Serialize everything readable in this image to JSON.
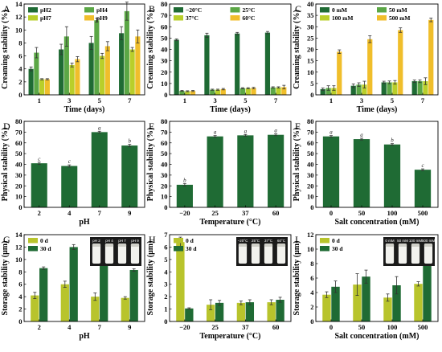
{
  "colors": {
    "dark_green": "#1f6b34",
    "mid_green": "#5ba746",
    "light_green": "#b9cf2a",
    "yellow": "#f0be2b",
    "olive": "#b8c42c",
    "error": "#333333"
  },
  "chart_data": [
    {
      "panel": "A",
      "type": "bar",
      "ylabel": "Creaming stability (%)",
      "xlabel": "Time (days)",
      "categories": [
        "1",
        "3",
        "5",
        "7"
      ],
      "ylim": [
        0,
        14
      ],
      "yticks": [
        0,
        2,
        4,
        6,
        8,
        10,
        12,
        14
      ],
      "legend_cols": 2,
      "series": [
        {
          "name": "pH2",
          "color": "#1f6b34",
          "values": [
            4.0,
            7.0,
            8.0,
            9.5
          ],
          "err": [
            0.3,
            0.8,
            1.0,
            1.0
          ]
        },
        {
          "name": "pH4",
          "color": "#5ba746",
          "values": [
            6.5,
            9.0,
            11.5,
            12.9
          ],
          "err": [
            0.8,
            1.5,
            0.3,
            1.4
          ]
        },
        {
          "name": "pH7",
          "color": "#b9cf2a",
          "values": [
            2.4,
            4.6,
            6.0,
            7.0
          ],
          "err": [
            0.1,
            0.3,
            0.4,
            0.3
          ]
        },
        {
          "name": "pH9",
          "color": "#f0be2b",
          "values": [
            2.4,
            5.5,
            7.5,
            9.0
          ],
          "err": [
            0.1,
            0.4,
            0.7,
            1.0
          ]
        }
      ]
    },
    {
      "panel": "B",
      "type": "bar",
      "ylabel": "Creaming stability (%)",
      "xlabel": "Time (days)",
      "categories": [
        "1",
        "3",
        "5",
        "7"
      ],
      "ylim": [
        0,
        80
      ],
      "yticks": [
        0,
        10,
        20,
        30,
        40,
        50,
        60,
        70,
        80
      ],
      "legend_cols": 2,
      "series": [
        {
          "name": "−20°C",
          "color": "#1f6b34",
          "values": [
            48.5,
            52.5,
            54.0,
            54.8
          ],
          "err": [
            0.8,
            1.8,
            1.0,
            1.0
          ]
        },
        {
          "name": "25°C",
          "color": "#5ba746",
          "values": [
            3.5,
            4.5,
            5.8,
            6.5
          ],
          "err": [
            0.4,
            0.5,
            0.5,
            0.6
          ]
        },
        {
          "name": "37°C",
          "color": "#b9cf2a",
          "values": [
            3.2,
            4.5,
            5.8,
            6.5
          ],
          "err": [
            0.4,
            0.5,
            0.5,
            0.6
          ]
        },
        {
          "name": "60°C",
          "color": "#f0be2b",
          "values": [
            3.4,
            5.0,
            6.0,
            6.8
          ],
          "err": [
            0.5,
            0.6,
            0.6,
            1.6
          ]
        }
      ]
    },
    {
      "panel": "C",
      "type": "bar",
      "ylabel": "Creaming stability (%)",
      "xlabel": "Time (days)",
      "categories": [
        "1",
        "3",
        "5",
        "7"
      ],
      "ylim": [
        0,
        40
      ],
      "yticks": [
        0,
        5,
        10,
        15,
        20,
        25,
        30,
        35,
        40
      ],
      "legend_cols": 2,
      "series": [
        {
          "name": "0 mM",
          "color": "#1f6b34",
          "values": [
            2.5,
            4.0,
            5.5,
            6.0
          ],
          "err": [
            0.5,
            0.8,
            0.5,
            0.5
          ]
        },
        {
          "name": "50 mM",
          "color": "#5ba746",
          "values": [
            3.0,
            4.5,
            5.5,
            6.0
          ],
          "err": [
            1.0,
            0.8,
            0.6,
            0.6
          ]
        },
        {
          "name": "100 mM",
          "color": "#b9cf2a",
          "values": [
            3.0,
            4.5,
            5.5,
            6.0
          ],
          "err": [
            1.0,
            1.5,
            0.8,
            1.5
          ]
        },
        {
          "name": "500 mM",
          "color": "#f0be2b",
          "values": [
            19.0,
            24.5,
            28.5,
            33.0
          ],
          "err": [
            0.8,
            1.5,
            1.0,
            0.8
          ]
        }
      ]
    },
    {
      "panel": "D",
      "type": "bar",
      "ylabel": "Physical stability (%)",
      "xlabel": "pH",
      "categories": [
        "2",
        "4",
        "7",
        "9"
      ],
      "ylim": [
        0,
        80
      ],
      "yticks": [
        0,
        10,
        20,
        30,
        40,
        50,
        60,
        70,
        80
      ],
      "series": [
        {
          "color": "#1f6b34",
          "values": [
            41,
            38.5,
            70,
            57.5
          ],
          "err": [
            1.0,
            1.0,
            0.8,
            1.2
          ],
          "labels": [
            "c",
            "c",
            "a",
            "b"
          ]
        }
      ]
    },
    {
      "panel": "E",
      "type": "bar",
      "ylabel": "Physical stability (%)",
      "xlabel": "Temperature (°C)",
      "categories": [
        "−20",
        "25",
        "37",
        "60"
      ],
      "ylim": [
        0,
        80
      ],
      "yticks": [
        0,
        10,
        20,
        30,
        40,
        50,
        60,
        70,
        80
      ],
      "series": [
        {
          "color": "#1f6b34",
          "values": [
            21,
            66,
            67,
            67.5
          ],
          "err": [
            1.2,
            0.8,
            0.8,
            0.8
          ],
          "labels": [
            "b",
            "a",
            "a",
            "a"
          ]
        }
      ]
    },
    {
      "panel": "F",
      "type": "bar",
      "ylabel": "Physical stability (%)",
      "xlabel": "Salt concentration (mM)",
      "categories": [
        "0",
        "50",
        "100",
        "500"
      ],
      "ylim": [
        0,
        80
      ],
      "yticks": [
        0,
        10,
        20,
        30,
        40,
        50,
        60,
        70,
        80
      ],
      "series": [
        {
          "color": "#1f6b34",
          "values": [
            66,
            63.5,
            58.5,
            35
          ],
          "err": [
            0.8,
            0.8,
            0.8,
            0.8
          ],
          "labels": [
            "a",
            "a",
            "b",
            "c"
          ]
        }
      ]
    },
    {
      "panel": "G",
      "type": "bar",
      "ylabel": "Storage stability (μm)",
      "xlabel": "pH",
      "categories": [
        "2",
        "4",
        "7",
        "9"
      ],
      "ylim": [
        0,
        14
      ],
      "yticks": [
        0,
        2,
        4,
        6,
        8,
        10,
        12,
        14
      ],
      "legend_cols": 1,
      "series": [
        {
          "name": "0 d",
          "color": "#b8c42c",
          "values": [
            4.2,
            6.0,
            4.0,
            3.8
          ],
          "err": [
            0.5,
            0.5,
            0.6,
            0.2
          ]
        },
        {
          "name": "30 d",
          "color": "#1f6b34",
          "values": [
            8.6,
            12.0,
            9.4,
            8.3
          ],
          "err": [
            0.2,
            0.4,
            0.4,
            0.2
          ]
        }
      ],
      "inset": {
        "labels": [
          "pH 2",
          "pH 4",
          "pH 7",
          "pH 9"
        ]
      }
    },
    {
      "panel": "H",
      "type": "bar",
      "ylabel": "Storage stability (μm)",
      "xlabel": "Temperature (°C)",
      "categories": [
        "−20",
        "25",
        "37",
        "60"
      ],
      "ylim": [
        0,
        7
      ],
      "yticks": [
        0,
        1,
        2,
        3,
        4,
        5,
        6,
        7
      ],
      "legend_cols": 1,
      "series": [
        {
          "name": "0 d",
          "color": "#b8c42c",
          "values": [
            6.4,
            1.35,
            1.5,
            1.55
          ],
          "err": [
            0.4,
            0.4,
            0.15,
            0.2
          ]
        },
        {
          "name": "30 d",
          "color": "#1f6b34",
          "values": [
            1.05,
            1.5,
            1.55,
            1.75
          ],
          "err": [
            0.05,
            0.2,
            0.2,
            0.2
          ]
        }
      ],
      "inset": {
        "labels": [
          "−20°C",
          "25°C",
          "37°C",
          "60°C"
        ]
      }
    },
    {
      "panel": "I",
      "type": "bar",
      "ylabel": "Storage stability (μm)",
      "xlabel": "Salt concentration (mM)",
      "categories": [
        "0",
        "50",
        "100",
        "500"
      ],
      "ylim": [
        0,
        12
      ],
      "yticks": [
        0,
        2,
        4,
        6,
        8,
        10,
        12
      ],
      "legend_cols": 1,
      "series": [
        {
          "name": "0 d",
          "color": "#b8c42c",
          "values": [
            3.7,
            5.1,
            3.3,
            5.2
          ],
          "err": [
            0.4,
            1.5,
            0.5,
            0.3
          ]
        },
        {
          "name": "30 d",
          "color": "#1f6b34",
          "values": [
            4.8,
            6.2,
            5.0,
            8.8
          ],
          "err": [
            0.8,
            0.9,
            1.2,
            0.9
          ]
        }
      ],
      "inset": {
        "labels": [
          "0 mM",
          "50 mM",
          "100 mM",
          "500 mM"
        ]
      }
    }
  ]
}
